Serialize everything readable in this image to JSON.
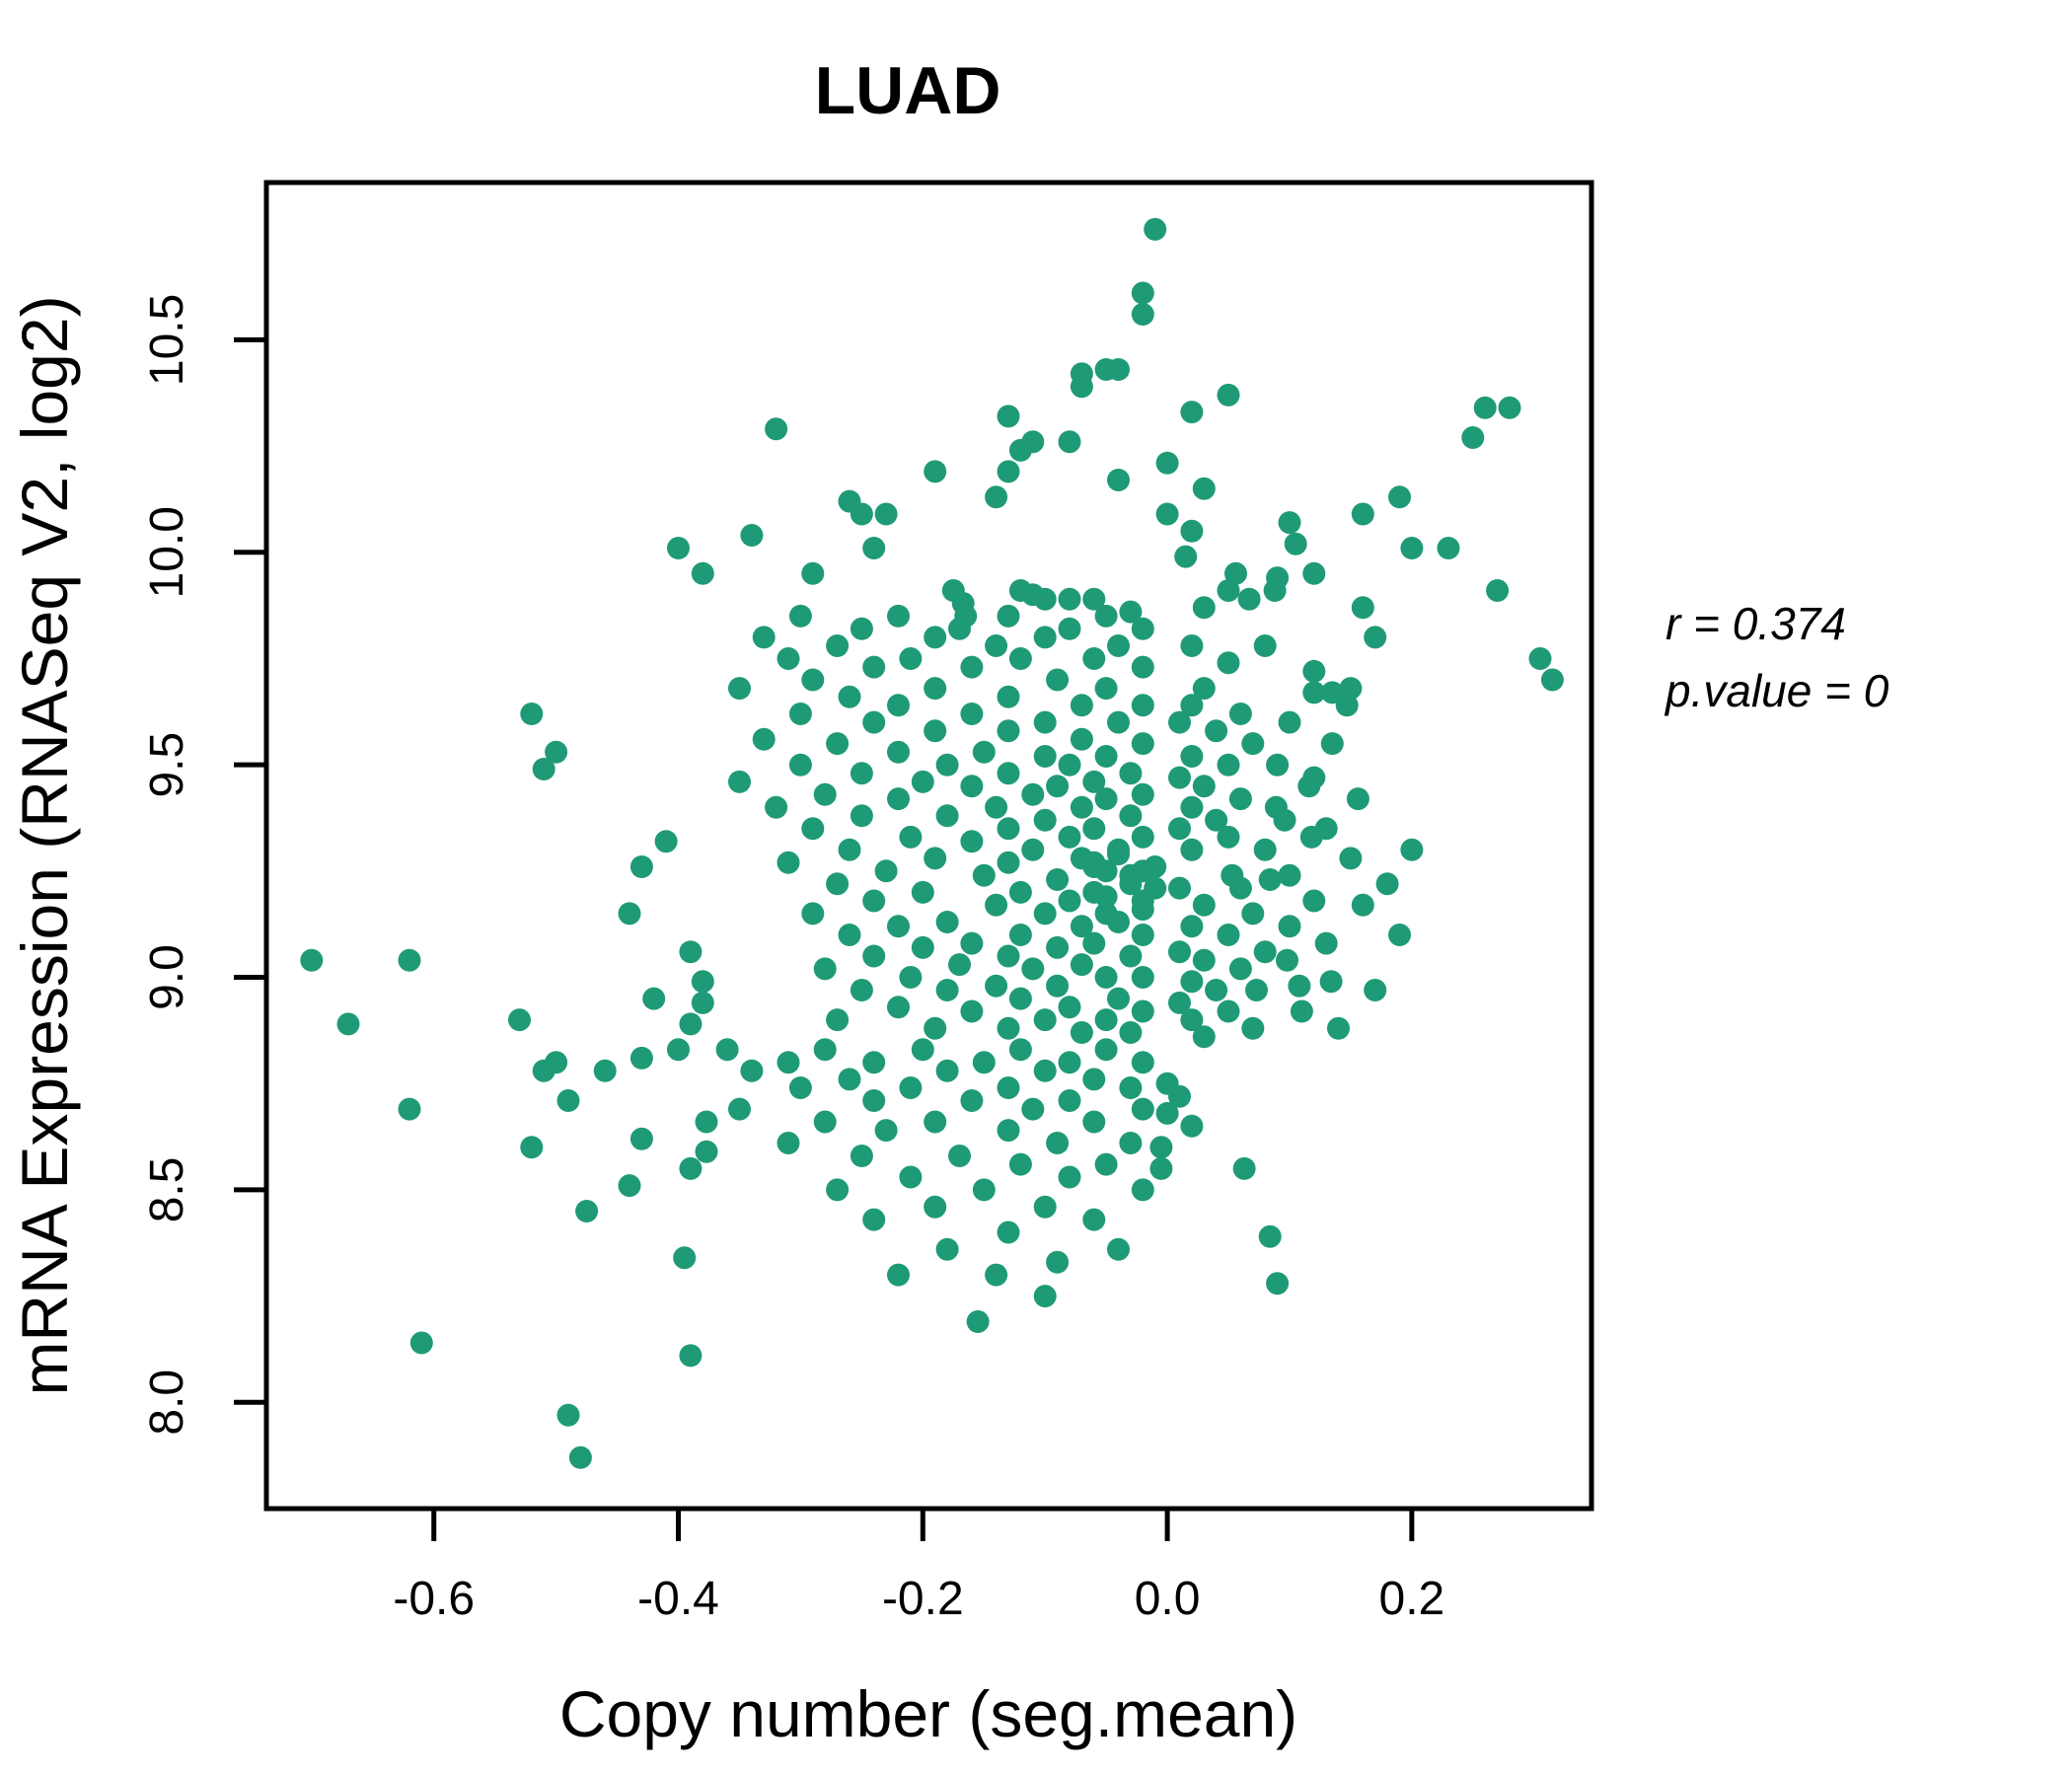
{
  "title_text": "LUAD",
  "colors": {
    "title": "#1aa077",
    "points": "#1f9a76",
    "axis": "#000000"
  },
  "annotation": {
    "line1": "r = 0.374",
    "line2": "p.value = 0"
  },
  "chart_data": {
    "type": "scatter",
    "title": "LUAD",
    "xlabel": "Copy number (seg.mean)",
    "ylabel": "mRNA Expression (RNASeq V2, log2)",
    "x_ticks": [
      -0.6,
      -0.4,
      -0.2,
      0.0,
      0.2
    ],
    "x_tick_labels": [
      "-0.6",
      "-0.4",
      "-0.2",
      "0.0",
      "0.2"
    ],
    "y_ticks": [
      8.0,
      8.5,
      9.0,
      9.5,
      10.0,
      10.5
    ],
    "y_tick_labels": [
      "8.0",
      "8.5",
      "9.0",
      "9.5",
      "10.0",
      "10.5"
    ],
    "xlim": [
      -0.737,
      0.347
    ],
    "ylim": [
      7.75,
      10.87
    ],
    "grid": false,
    "legend": "none",
    "correlation_r": 0.374,
    "p_value": 0,
    "points": [
      [
        -0.01,
        10.76
      ],
      [
        -0.02,
        10.61
      ],
      [
        -0.02,
        10.56
      ],
      [
        -0.05,
        10.43
      ],
      [
        -0.04,
        10.43
      ],
      [
        -0.07,
        10.42
      ],
      [
        -0.07,
        10.39
      ],
      [
        0.05,
        10.37
      ],
      [
        0.26,
        10.34
      ],
      [
        0.28,
        10.34
      ],
      [
        0.02,
        10.33
      ],
      [
        -0.13,
        10.32
      ],
      [
        -0.32,
        10.29
      ],
      [
        0.25,
        10.27
      ],
      [
        -0.11,
        10.26
      ],
      [
        -0.08,
        10.26
      ],
      [
        -0.12,
        10.24
      ],
      [
        0.0,
        10.21
      ],
      [
        -0.19,
        10.19
      ],
      [
        -0.13,
        10.19
      ],
      [
        -0.04,
        10.17
      ],
      [
        0.03,
        10.15
      ],
      [
        -0.14,
        10.13
      ],
      [
        0.19,
        10.13
      ],
      [
        -0.26,
        10.12
      ],
      [
        -0.25,
        10.09
      ],
      [
        -0.23,
        10.09
      ],
      [
        0.0,
        10.09
      ],
      [
        0.16,
        10.09
      ],
      [
        0.1,
        10.07
      ],
      [
        0.02,
        10.05
      ],
      [
        -0.34,
        10.04
      ],
      [
        0.105,
        10.02
      ],
      [
        -0.24,
        10.01
      ],
      [
        0.2,
        10.01
      ],
      [
        0.23,
        10.01
      ],
      [
        -0.4,
        10.01
      ],
      [
        0.015,
        9.99
      ],
      [
        -0.29,
        9.95
      ],
      [
        0.056,
        9.95
      ],
      [
        0.12,
        9.95
      ],
      [
        -0.38,
        9.95
      ],
      [
        0.09,
        9.94
      ],
      [
        -0.175,
        9.91
      ],
      [
        0.05,
        9.91
      ],
      [
        0.27,
        9.91
      ],
      [
        -0.12,
        9.91
      ],
      [
        0.088,
        9.91
      ],
      [
        -0.11,
        9.9
      ],
      [
        -0.167,
        9.88
      ],
      [
        -0.1,
        9.89
      ],
      [
        -0.08,
        9.89
      ],
      [
        -0.06,
        9.89
      ],
      [
        0.067,
        9.89
      ],
      [
        -0.03,
        9.86
      ],
      [
        0.16,
        9.87
      ],
      [
        0.03,
        9.87
      ],
      [
        -0.165,
        9.85
      ],
      [
        0.305,
        9.75
      ],
      [
        0.315,
        9.7
      ],
      [
        -0.52,
        9.62
      ],
      [
        -0.5,
        9.53
      ],
      [
        -0.51,
        9.49
      ],
      [
        -0.41,
        9.32
      ],
      [
        -0.43,
        9.26
      ],
      [
        -0.7,
        9.04
      ],
      [
        -0.62,
        9.04
      ],
      [
        -0.67,
        8.89
      ],
      [
        -0.53,
        8.9
      ],
      [
        -0.42,
        8.95
      ],
      [
        -0.44,
        9.15
      ],
      [
        -0.39,
        9.06
      ],
      [
        -0.38,
        8.99
      ],
      [
        -0.38,
        8.94
      ],
      [
        -0.39,
        8.89
      ],
      [
        -0.4,
        8.83
      ],
      [
        -0.5,
        8.8
      ],
      [
        -0.43,
        8.81
      ],
      [
        -0.62,
        8.69
      ],
      [
        -0.51,
        8.78
      ],
      [
        -0.49,
        8.71
      ],
      [
        -0.46,
        8.78
      ],
      [
        -0.52,
        8.6
      ],
      [
        -0.43,
        8.62
      ],
      [
        -0.44,
        8.51
      ],
      [
        -0.475,
        8.45
      ],
      [
        -0.39,
        8.55
      ],
      [
        -0.377,
        8.59
      ],
      [
        -0.377,
        8.66
      ],
      [
        -0.395,
        8.34
      ],
      [
        -0.61,
        8.14
      ],
      [
        -0.39,
        8.11
      ],
      [
        -0.49,
        7.97
      ],
      [
        -0.48,
        7.87
      ],
      [
        -0.3,
        9.85
      ],
      [
        -0.22,
        9.85
      ],
      [
        -0.13,
        9.85
      ],
      [
        -0.05,
        9.85
      ],
      [
        -0.25,
        9.82
      ],
      [
        -0.17,
        9.82
      ],
      [
        -0.08,
        9.82
      ],
      [
        -0.02,
        9.82
      ],
      [
        -0.33,
        9.8
      ],
      [
        -0.19,
        9.8
      ],
      [
        -0.1,
        9.8
      ],
      [
        0.17,
        9.8
      ],
      [
        -0.27,
        9.78
      ],
      [
        -0.14,
        9.78
      ],
      [
        -0.04,
        9.78
      ],
      [
        0.02,
        9.78
      ],
      [
        0.08,
        9.78
      ],
      [
        -0.31,
        9.75
      ],
      [
        -0.21,
        9.75
      ],
      [
        -0.12,
        9.75
      ],
      [
        -0.06,
        9.75
      ],
      [
        -0.24,
        9.73
      ],
      [
        -0.16,
        9.73
      ],
      [
        -0.02,
        9.73
      ],
      [
        0.05,
        9.74
      ],
      [
        -0.29,
        9.7
      ],
      [
        -0.09,
        9.7
      ],
      [
        0.12,
        9.72
      ],
      [
        -0.35,
        9.68
      ],
      [
        -0.19,
        9.68
      ],
      [
        -0.05,
        9.68
      ],
      [
        0.15,
        9.68
      ],
      [
        0.03,
        9.68
      ],
      [
        -0.26,
        9.66
      ],
      [
        -0.13,
        9.66
      ],
      [
        0.12,
        9.67
      ],
      [
        0.135,
        9.67
      ],
      [
        -0.22,
        9.64
      ],
      [
        -0.07,
        9.64
      ],
      [
        -0.02,
        9.64
      ],
      [
        0.147,
        9.64
      ],
      [
        0.02,
        9.64
      ],
      [
        -0.3,
        9.62
      ],
      [
        -0.16,
        9.62
      ],
      [
        0.06,
        9.62
      ],
      [
        -0.24,
        9.6
      ],
      [
        -0.1,
        9.6
      ],
      [
        -0.04,
        9.6
      ],
      [
        0.1,
        9.6
      ],
      [
        0.01,
        9.6
      ],
      [
        -0.19,
        9.58
      ],
      [
        -0.13,
        9.58
      ],
      [
        0.04,
        9.58
      ],
      [
        -0.33,
        9.56
      ],
      [
        -0.07,
        9.56
      ],
      [
        -0.27,
        9.55
      ],
      [
        -0.02,
        9.55
      ],
      [
        0.135,
        9.55
      ],
      [
        0.07,
        9.55
      ],
      [
        -0.22,
        9.53
      ],
      [
        -0.15,
        9.53
      ],
      [
        -0.1,
        9.52
      ],
      [
        -0.05,
        9.52
      ],
      [
        0.02,
        9.52
      ],
      [
        -0.3,
        9.5
      ],
      [
        -0.18,
        9.5
      ],
      [
        -0.08,
        9.5
      ],
      [
        0.09,
        9.5
      ],
      [
        0.05,
        9.5
      ],
      [
        -0.25,
        9.48
      ],
      [
        -0.13,
        9.48
      ],
      [
        -0.03,
        9.48
      ],
      [
        0.12,
        9.47
      ],
      [
        0.01,
        9.47
      ],
      [
        -0.35,
        9.46
      ],
      [
        -0.2,
        9.46
      ],
      [
        -0.06,
        9.46
      ],
      [
        -0.16,
        9.45
      ],
      [
        -0.09,
        9.45
      ],
      [
        0.116,
        9.45
      ],
      [
        0.03,
        9.45
      ],
      [
        -0.28,
        9.43
      ],
      [
        -0.11,
        9.43
      ],
      [
        -0.02,
        9.43
      ],
      [
        -0.22,
        9.42
      ],
      [
        -0.05,
        9.42
      ],
      [
        0.156,
        9.42
      ],
      [
        0.06,
        9.42
      ],
      [
        -0.32,
        9.4
      ],
      [
        -0.14,
        9.4
      ],
      [
        -0.07,
        9.4
      ],
      [
        0.089,
        9.4
      ],
      [
        0.02,
        9.4
      ],
      [
        -0.25,
        9.38
      ],
      [
        -0.18,
        9.38
      ],
      [
        -0.03,
        9.38
      ],
      [
        -0.1,
        9.37
      ],
      [
        0.096,
        9.37
      ],
      [
        0.04,
        9.37
      ],
      [
        -0.29,
        9.35
      ],
      [
        -0.13,
        9.35
      ],
      [
        -0.06,
        9.35
      ],
      [
        0.13,
        9.35
      ],
      [
        0.01,
        9.35
      ],
      [
        -0.21,
        9.33
      ],
      [
        -0.08,
        9.33
      ],
      [
        -0.02,
        9.33
      ],
      [
        0.118,
        9.33
      ],
      [
        0.05,
        9.33
      ],
      [
        -0.16,
        9.32
      ],
      [
        -0.26,
        9.3
      ],
      [
        -0.11,
        9.3
      ],
      [
        -0.04,
        9.3
      ],
      [
        0.02,
        9.3
      ],
      [
        0.08,
        9.3
      ],
      [
        0.2,
        9.3
      ],
      [
        -0.19,
        9.28
      ],
      [
        -0.07,
        9.28
      ],
      [
        0.15,
        9.28
      ],
      [
        -0.31,
        9.27
      ],
      [
        -0.13,
        9.27
      ],
      [
        -0.06,
        9.27
      ],
      [
        -0.23,
        9.25
      ],
      [
        -0.05,
        9.25
      ],
      [
        -0.02,
        9.25
      ],
      [
        -0.15,
        9.24
      ],
      [
        0.053,
        9.24
      ],
      [
        0.1,
        9.24
      ],
      [
        -0.03,
        9.24
      ],
      [
        -0.09,
        9.23
      ],
      [
        0.084,
        9.23
      ],
      [
        -0.27,
        9.22
      ],
      [
        -0.03,
        9.22
      ],
      [
        0.18,
        9.22
      ],
      [
        0.01,
        9.21
      ],
      [
        0.06,
        9.21
      ],
      [
        -0.01,
        9.21
      ],
      [
        -0.2,
        9.2
      ],
      [
        -0.12,
        9.2
      ],
      [
        -0.06,
        9.2
      ],
      [
        -0.24,
        9.18
      ],
      [
        -0.08,
        9.18
      ],
      [
        -0.02,
        9.18
      ],
      [
        0.12,
        9.18
      ],
      [
        -0.14,
        9.17
      ],
      [
        0.16,
        9.17
      ],
      [
        0.03,
        9.17
      ],
      [
        -0.02,
        9.16
      ],
      [
        -0.29,
        9.15
      ],
      [
        -0.1,
        9.15
      ],
      [
        -0.05,
        9.15
      ],
      [
        0.07,
        9.15
      ],
      [
        -0.18,
        9.13
      ],
      [
        -0.04,
        9.13
      ],
      [
        -0.22,
        9.12
      ],
      [
        -0.07,
        9.12
      ],
      [
        0.02,
        9.12
      ],
      [
        0.1,
        9.12
      ],
      [
        -0.26,
        9.1
      ],
      [
        -0.12,
        9.1
      ],
      [
        -0.02,
        9.1
      ],
      [
        0.05,
        9.1
      ],
      [
        0.19,
        9.1
      ],
      [
        -0.16,
        9.08
      ],
      [
        -0.06,
        9.08
      ],
      [
        0.13,
        9.08
      ],
      [
        -0.2,
        9.07
      ],
      [
        -0.09,
        9.07
      ],
      [
        0.01,
        9.06
      ],
      [
        0.08,
        9.06
      ],
      [
        -0.24,
        9.05
      ],
      [
        -0.13,
        9.05
      ],
      [
        -0.03,
        9.05
      ],
      [
        0.098,
        9.04
      ],
      [
        0.03,
        9.04
      ],
      [
        -0.17,
        9.03
      ],
      [
        -0.07,
        9.03
      ],
      [
        -0.28,
        9.02
      ],
      [
        -0.11,
        9.02
      ],
      [
        0.06,
        9.02
      ],
      [
        -0.21,
        9.0
      ],
      [
        -0.05,
        9.0
      ],
      [
        -0.02,
        9.0
      ],
      [
        -0.04,
        9.29
      ],
      [
        -0.05,
        9.19
      ],
      [
        -0.06,
        9.26
      ],
      [
        -0.01,
        9.26
      ],
      [
        0.134,
        8.99
      ],
      [
        0.02,
        8.99
      ],
      [
        -0.14,
        8.98
      ],
      [
        -0.09,
        8.98
      ],
      [
        0.108,
        8.98
      ],
      [
        -0.25,
        8.97
      ],
      [
        -0.18,
        8.97
      ],
      [
        0.073,
        8.97
      ],
      [
        0.04,
        8.97
      ],
      [
        0.17,
        8.97
      ],
      [
        -0.12,
        8.95
      ],
      [
        -0.04,
        8.95
      ],
      [
        0.01,
        8.94
      ],
      [
        -0.22,
        8.93
      ],
      [
        -0.08,
        8.93
      ],
      [
        -0.16,
        8.92
      ],
      [
        -0.02,
        8.92
      ],
      [
        0.05,
        8.92
      ],
      [
        0.11,
        8.92
      ],
      [
        -0.27,
        8.9
      ],
      [
        -0.1,
        8.9
      ],
      [
        -0.05,
        8.9
      ],
      [
        0.02,
        8.9
      ],
      [
        -0.19,
        8.88
      ],
      [
        -0.13,
        8.88
      ],
      [
        0.07,
        8.88
      ],
      [
        0.14,
        8.88
      ],
      [
        -0.07,
        8.87
      ],
      [
        -0.03,
        8.87
      ],
      [
        0.03,
        8.86
      ],
      [
        -0.36,
        8.83
      ],
      [
        -0.28,
        8.83
      ],
      [
        -0.2,
        8.83
      ],
      [
        -0.12,
        8.83
      ],
      [
        -0.05,
        8.83
      ],
      [
        -0.31,
        8.8
      ],
      [
        -0.24,
        8.8
      ],
      [
        -0.15,
        8.8
      ],
      [
        -0.08,
        8.8
      ],
      [
        -0.02,
        8.8
      ],
      [
        -0.34,
        8.78
      ],
      [
        -0.18,
        8.78
      ],
      [
        -0.1,
        8.78
      ],
      [
        -0.26,
        8.76
      ],
      [
        -0.06,
        8.76
      ],
      [
        -0.3,
        8.74
      ],
      [
        -0.21,
        8.74
      ],
      [
        -0.13,
        8.74
      ],
      [
        -0.03,
        8.74
      ],
      [
        -0.24,
        8.71
      ],
      [
        -0.16,
        8.71
      ],
      [
        -0.08,
        8.71
      ],
      [
        -0.35,
        8.69
      ],
      [
        -0.11,
        8.69
      ],
      [
        -0.02,
        8.69
      ],
      [
        -0.28,
        8.66
      ],
      [
        -0.19,
        8.66
      ],
      [
        -0.06,
        8.66
      ],
      [
        -0.23,
        8.64
      ],
      [
        -0.13,
        8.64
      ],
      [
        -0.31,
        8.61
      ],
      [
        -0.09,
        8.61
      ],
      [
        -0.03,
        8.61
      ],
      [
        -0.25,
        8.58
      ],
      [
        -0.17,
        8.58
      ],
      [
        -0.12,
        8.56
      ],
      [
        -0.05,
        8.56
      ],
      [
        -0.21,
        8.53
      ],
      [
        -0.08,
        8.53
      ],
      [
        -0.27,
        8.5
      ],
      [
        -0.15,
        8.5
      ],
      [
        -0.02,
        8.5
      ],
      [
        -0.19,
        8.46
      ],
      [
        -0.1,
        8.46
      ],
      [
        -0.24,
        8.43
      ],
      [
        -0.06,
        8.43
      ],
      [
        -0.13,
        8.4
      ],
      [
        -0.18,
        8.36
      ],
      [
        -0.04,
        8.36
      ],
      [
        -0.09,
        8.33
      ],
      [
        -0.22,
        8.3
      ],
      [
        -0.14,
        8.3
      ],
      [
        -0.1,
        8.25
      ],
      [
        -0.155,
        8.19
      ],
      [
        0.0,
        8.68
      ],
      [
        0.01,
        8.72
      ],
      [
        -0.005,
        8.6
      ],
      [
        -0.005,
        8.55
      ],
      [
        0.063,
        8.55
      ],
      [
        0.084,
        8.39
      ],
      [
        0.02,
        8.65
      ],
      [
        0.0,
        8.75
      ],
      [
        0.09,
        8.28
      ]
    ]
  }
}
